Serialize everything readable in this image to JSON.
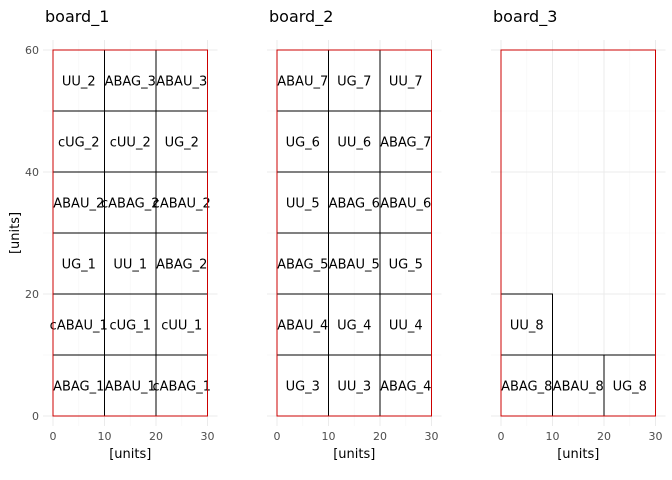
{
  "chart_data": {
    "type": "diagram-facets",
    "xlabel": "[units]",
    "ylabel": "[units]",
    "xlim": [
      0,
      30
    ],
    "ylim": [
      0,
      60
    ],
    "x_ticks": [
      0,
      10,
      20,
      30
    ],
    "y_ticks": [
      0,
      20,
      40,
      60
    ],
    "grid": true,
    "colors": {
      "board_outline": "#cc0000",
      "cell_outline": "#000000",
      "grid": "#ebebeb"
    },
    "panels": [
      {
        "title": "board_1",
        "width": 30,
        "height": 60,
        "cells": [
          {
            "label": "UU_2",
            "x": 0,
            "y": 50,
            "w": 10,
            "h": 10
          },
          {
            "label": "ABAG_3",
            "x": 10,
            "y": 50,
            "w": 10,
            "h": 10
          },
          {
            "label": "ABAU_3",
            "x": 20,
            "y": 50,
            "w": 10,
            "h": 10
          },
          {
            "label": "cUG_2",
            "x": 0,
            "y": 40,
            "w": 10,
            "h": 10
          },
          {
            "label": "cUU_2",
            "x": 10,
            "y": 40,
            "w": 10,
            "h": 10
          },
          {
            "label": "UG_2",
            "x": 20,
            "y": 40,
            "w": 10,
            "h": 10
          },
          {
            "label": "ABAU_2",
            "x": 0,
            "y": 30,
            "w": 10,
            "h": 10
          },
          {
            "label": "cABAG_2",
            "x": 10,
            "y": 30,
            "w": 10,
            "h": 10
          },
          {
            "label": "cABAU_2",
            "x": 20,
            "y": 30,
            "w": 10,
            "h": 10
          },
          {
            "label": "UG_1",
            "x": 0,
            "y": 20,
            "w": 10,
            "h": 10
          },
          {
            "label": "UU_1",
            "x": 10,
            "y": 20,
            "w": 10,
            "h": 10
          },
          {
            "label": "ABAG_2",
            "x": 20,
            "y": 20,
            "w": 10,
            "h": 10
          },
          {
            "label": "cABAU_1",
            "x": 0,
            "y": 10,
            "w": 10,
            "h": 10
          },
          {
            "label": "cUG_1",
            "x": 10,
            "y": 10,
            "w": 10,
            "h": 10
          },
          {
            "label": "cUU_1",
            "x": 20,
            "y": 10,
            "w": 10,
            "h": 10
          },
          {
            "label": "ABAG_1",
            "x": 0,
            "y": 0,
            "w": 10,
            "h": 10
          },
          {
            "label": "ABAU_1",
            "x": 10,
            "y": 0,
            "w": 10,
            "h": 10
          },
          {
            "label": "cABAG_1",
            "x": 20,
            "y": 0,
            "w": 10,
            "h": 10
          }
        ]
      },
      {
        "title": "board_2",
        "width": 30,
        "height": 60,
        "cells": [
          {
            "label": "ABAU_7",
            "x": 0,
            "y": 50,
            "w": 10,
            "h": 10
          },
          {
            "label": "UG_7",
            "x": 10,
            "y": 50,
            "w": 10,
            "h": 10
          },
          {
            "label": "UU_7",
            "x": 20,
            "y": 50,
            "w": 10,
            "h": 10
          },
          {
            "label": "UG_6",
            "x": 0,
            "y": 40,
            "w": 10,
            "h": 10
          },
          {
            "label": "UU_6",
            "x": 10,
            "y": 40,
            "w": 10,
            "h": 10
          },
          {
            "label": "ABAG_7",
            "x": 20,
            "y": 40,
            "w": 10,
            "h": 10
          },
          {
            "label": "UU_5",
            "x": 0,
            "y": 30,
            "w": 10,
            "h": 10
          },
          {
            "label": "ABAG_6",
            "x": 10,
            "y": 30,
            "w": 10,
            "h": 10
          },
          {
            "label": "ABAU_6",
            "x": 20,
            "y": 30,
            "w": 10,
            "h": 10
          },
          {
            "label": "ABAG_5",
            "x": 0,
            "y": 20,
            "w": 10,
            "h": 10
          },
          {
            "label": "ABAU_5",
            "x": 10,
            "y": 20,
            "w": 10,
            "h": 10
          },
          {
            "label": "UG_5",
            "x": 20,
            "y": 20,
            "w": 10,
            "h": 10
          },
          {
            "label": "ABAU_4",
            "x": 0,
            "y": 10,
            "w": 10,
            "h": 10
          },
          {
            "label": "UG_4",
            "x": 10,
            "y": 10,
            "w": 10,
            "h": 10
          },
          {
            "label": "UU_4",
            "x": 20,
            "y": 10,
            "w": 10,
            "h": 10
          },
          {
            "label": "UG_3",
            "x": 0,
            "y": 0,
            "w": 10,
            "h": 10
          },
          {
            "label": "UU_3",
            "x": 10,
            "y": 0,
            "w": 10,
            "h": 10
          },
          {
            "label": "ABAG_4",
            "x": 20,
            "y": 0,
            "w": 10,
            "h": 10
          }
        ]
      },
      {
        "title": "board_3",
        "width": 30,
        "height": 60,
        "cells": [
          {
            "label": "UU_8",
            "x": 0,
            "y": 10,
            "w": 10,
            "h": 10
          },
          {
            "label": "ABAG_8",
            "x": 0,
            "y": 0,
            "w": 10,
            "h": 10
          },
          {
            "label": "ABAU_8",
            "x": 10,
            "y": 0,
            "w": 10,
            "h": 10
          },
          {
            "label": "UG_8",
            "x": 20,
            "y": 0,
            "w": 10,
            "h": 10
          }
        ]
      }
    ]
  }
}
